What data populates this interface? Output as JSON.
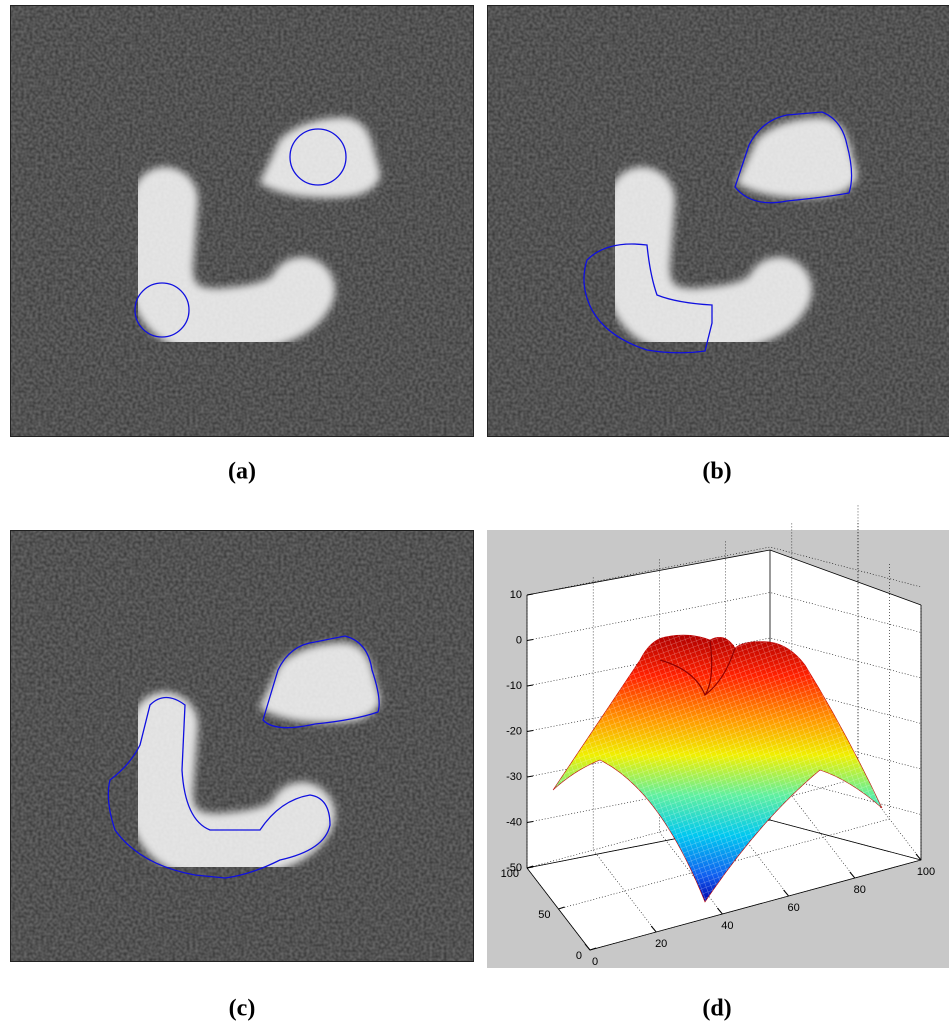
{
  "panels": [
    {
      "caption": "(a)"
    },
    {
      "caption": "(b)"
    },
    {
      "caption": "(c)"
    },
    {
      "caption": "(d)"
    }
  ],
  "surface_plot": {
    "zlim": [
      -50,
      10
    ],
    "zticks": [
      10,
      0,
      -10,
      -20,
      -30,
      -40,
      -50
    ],
    "ylim": [
      0,
      100
    ],
    "yticks": [
      0,
      50,
      100
    ],
    "xlim": [
      0,
      100
    ],
    "xticks": [
      0,
      20,
      40,
      60,
      80,
      100
    ]
  }
}
